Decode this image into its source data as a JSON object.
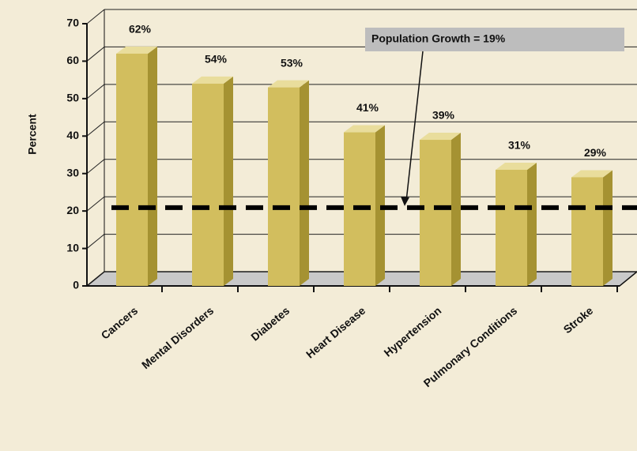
{
  "chart_data": {
    "type": "bar",
    "y_axis_label": "Percent",
    "categories": [
      "Cancers",
      "Mental Disorders",
      "Diabetes",
      "Heart Disease",
      "Hypertension",
      "Pulmonary Conditions",
      "Stroke"
    ],
    "values": [
      62,
      54,
      53,
      41,
      39,
      31,
      29
    ],
    "value_labels": [
      "62%",
      "54%",
      "53%",
      "41%",
      "39%",
      "31%",
      "29%"
    ],
    "color": "#d2be5e",
    "ylim": [
      0,
      70
    ],
    "yticks": [
      0,
      10,
      20,
      30,
      40,
      50,
      60,
      70
    ],
    "grid": true,
    "reference_line": {
      "value": 19,
      "label": "Population Growth = 19%"
    }
  }
}
